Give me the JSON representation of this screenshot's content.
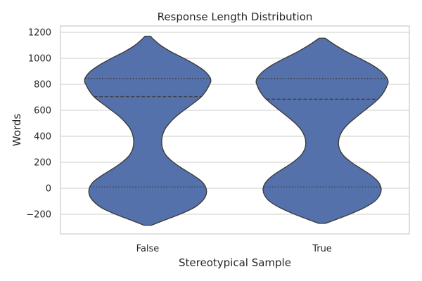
{
  "chart_data": {
    "type": "violin",
    "title": "Response Length Distribution",
    "xlabel": "Stereotypical Sample",
    "ylabel": "Words",
    "ylim": [
      -350,
      1250
    ],
    "yticks": [
      -200,
      0,
      200,
      400,
      600,
      800,
      1000,
      1200
    ],
    "grid": true,
    "colors": {
      "violin_fill": "#5471ab",
      "violin_edge": "#3d3d3d",
      "grid": "#cccccc",
      "frame": "#cccccc"
    },
    "categories": [
      "False",
      "True"
    ],
    "violins": [
      {
        "category": "False",
        "min": -285,
        "max": 1170,
        "quartiles": {
          "q1": 10,
          "median": 705,
          "q3": 845
        },
        "profile": [
          [
            -285,
            0.06
          ],
          [
            -250,
            0.26
          ],
          [
            -200,
            0.55
          ],
          [
            -150,
            0.79
          ],
          [
            -100,
            0.93
          ],
          [
            -50,
            1.0
          ],
          [
            0,
            1.0
          ],
          [
            50,
            0.93
          ],
          [
            100,
            0.78
          ],
          [
            150,
            0.6
          ],
          [
            200,
            0.44
          ],
          [
            250,
            0.32
          ],
          [
            300,
            0.26
          ],
          [
            350,
            0.24
          ],
          [
            400,
            0.25
          ],
          [
            450,
            0.29
          ],
          [
            500,
            0.37
          ],
          [
            550,
            0.48
          ],
          [
            600,
            0.62
          ],
          [
            650,
            0.77
          ],
          [
            700,
            0.91
          ],
          [
            750,
            1.0
          ],
          [
            800,
            1.06
          ],
          [
            820,
            1.08
          ],
          [
            850,
            1.07
          ],
          [
            900,
            0.98
          ],
          [
            950,
            0.82
          ],
          [
            1000,
            0.62
          ],
          [
            1050,
            0.4
          ],
          [
            1100,
            0.22
          ],
          [
            1150,
            0.09
          ],
          [
            1170,
            0.05
          ]
        ]
      },
      {
        "category": "True",
        "min": -270,
        "max": 1155,
        "quartiles": {
          "q1": 10,
          "median": 685,
          "q3": 845
        },
        "profile": [
          [
            -270,
            0.06
          ],
          [
            -250,
            0.18
          ],
          [
            -200,
            0.47
          ],
          [
            -150,
            0.72
          ],
          [
            -100,
            0.9
          ],
          [
            -50,
            0.99
          ],
          [
            0,
            1.01
          ],
          [
            50,
            0.96
          ],
          [
            100,
            0.84
          ],
          [
            150,
            0.67
          ],
          [
            200,
            0.5
          ],
          [
            250,
            0.37
          ],
          [
            300,
            0.3
          ],
          [
            350,
            0.28
          ],
          [
            400,
            0.3
          ],
          [
            450,
            0.36
          ],
          [
            500,
            0.46
          ],
          [
            550,
            0.59
          ],
          [
            600,
            0.73
          ],
          [
            650,
            0.87
          ],
          [
            700,
            0.99
          ],
          [
            750,
            1.07
          ],
          [
            800,
            1.12
          ],
          [
            820,
            1.13
          ],
          [
            850,
            1.11
          ],
          [
            900,
            1.01
          ],
          [
            950,
            0.85
          ],
          [
            1000,
            0.64
          ],
          [
            1050,
            0.42
          ],
          [
            1100,
            0.23
          ],
          [
            1130,
            0.13
          ],
          [
            1155,
            0.05
          ]
        ]
      }
    ]
  }
}
